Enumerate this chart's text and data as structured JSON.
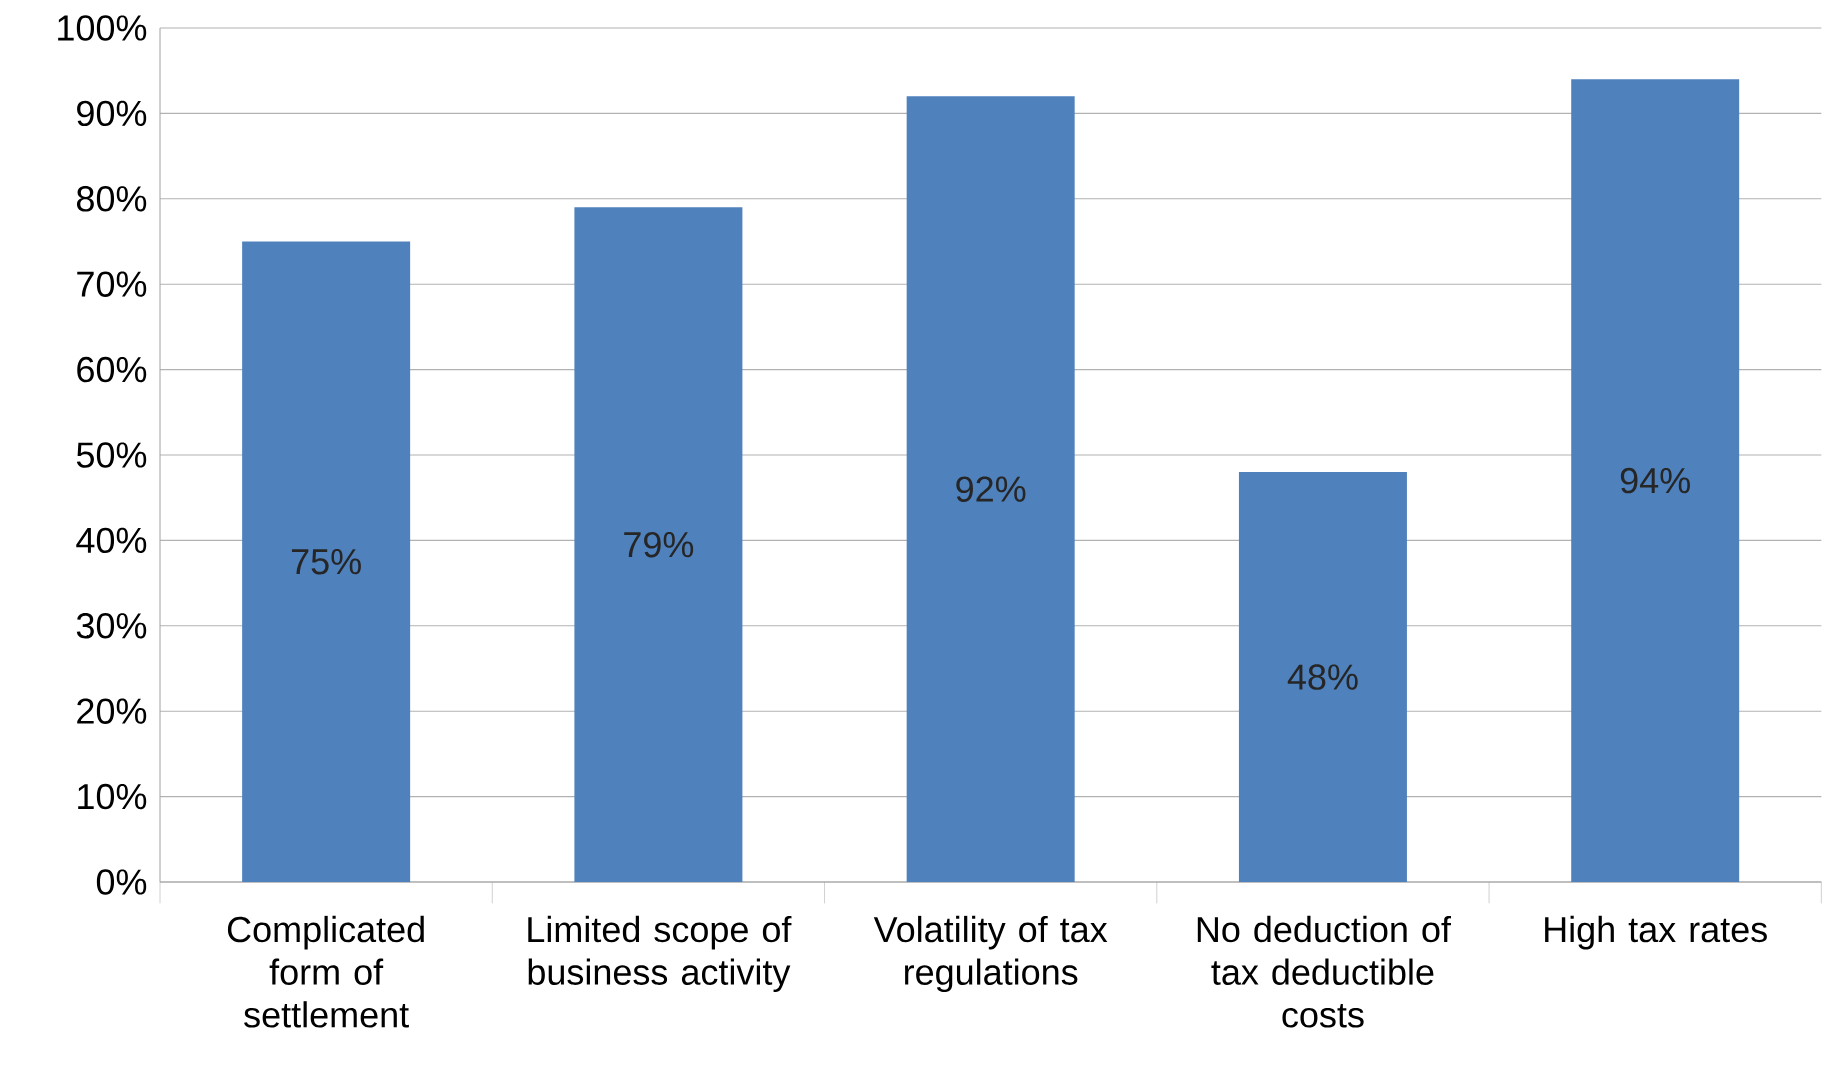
{
  "chart_data": {
    "type": "bar",
    "categories": [
      "Complicated form of settlement",
      "Limited scope of business activity",
      "Volatility of tax regulations",
      "No deduction of tax deductible costs",
      "High tax rates"
    ],
    "values": [
      75,
      79,
      92,
      48,
      94
    ],
    "value_labels": [
      "75%",
      "79%",
      "92%",
      "48%",
      "94%"
    ],
    "color": "#4f81bd",
    "ylim": [
      0,
      100
    ],
    "yticks": [
      {
        "value": 0,
        "label": "0%"
      },
      {
        "value": 10,
        "label": "10%"
      },
      {
        "value": 20,
        "label": "20%"
      },
      {
        "value": 30,
        "label": "30%"
      },
      {
        "value": 40,
        "label": "40%"
      },
      {
        "value": 50,
        "label": "50%"
      },
      {
        "value": 60,
        "label": "60%"
      },
      {
        "value": 70,
        "label": "70%"
      },
      {
        "value": 80,
        "label": "80%"
      },
      {
        "value": 90,
        "label": "90%"
      },
      {
        "value": 100,
        "label": "100%"
      }
    ],
    "grid": "y"
  }
}
